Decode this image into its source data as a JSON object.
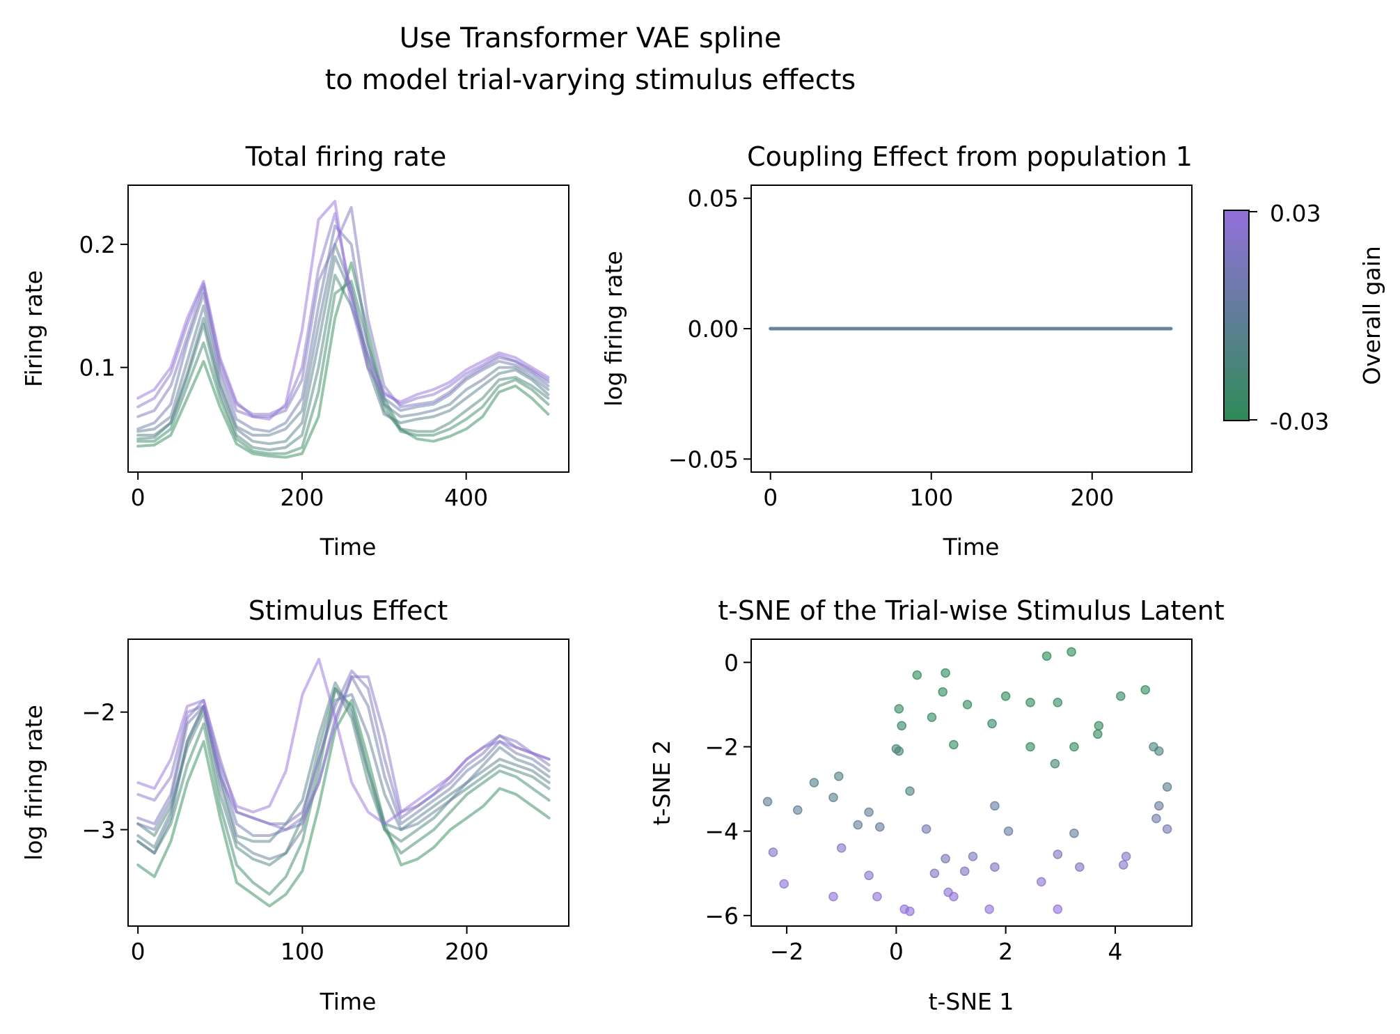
{
  "suptitle": [
    "Use Transformer VAE spline",
    "to model trial-varying stimulus effects"
  ],
  "colormap": {
    "low_color": "#2e8b57",
    "high_color": "#9370db",
    "label": "Overall gain",
    "ticks": [
      "0.03",
      "-0.03"
    ],
    "range": [
      -0.03,
      0.03
    ]
  },
  "chart_data": [
    {
      "type": "line",
      "title": "Total firing rate",
      "xlabel": "Time",
      "ylabel": "Firing rate",
      "xlim": [
        -12,
        525
      ],
      "ylim": [
        0.015,
        0.248
      ],
      "xticks": [
        0,
        200,
        400
      ],
      "yticks": [
        0.1,
        0.2
      ],
      "ytick_labels": [
        "0.1",
        "0.2"
      ],
      "x": [
        0,
        20,
        40,
        60,
        80,
        100,
        120,
        140,
        160,
        180,
        200,
        220,
        240,
        260,
        280,
        300,
        320,
        340,
        360,
        380,
        400,
        420,
        440,
        460,
        480,
        500
      ],
      "series": [
        {
          "gain": -0.03,
          "values": [
            0.036,
            0.037,
            0.045,
            0.075,
            0.105,
            0.068,
            0.038,
            0.03,
            0.028,
            0.027,
            0.03,
            0.06,
            0.14,
            0.185,
            0.13,
            0.075,
            0.05,
            0.042,
            0.04,
            0.044,
            0.05,
            0.06,
            0.08,
            0.085,
            0.075,
            0.062
          ]
        },
        {
          "gain": -0.022,
          "values": [
            0.04,
            0.04,
            0.05,
            0.085,
            0.12,
            0.075,
            0.042,
            0.032,
            0.03,
            0.03,
            0.035,
            0.08,
            0.16,
            0.17,
            0.12,
            0.07,
            0.048,
            0.045,
            0.045,
            0.05,
            0.058,
            0.068,
            0.085,
            0.09,
            0.082,
            0.07
          ]
        },
        {
          "gain": -0.014,
          "values": [
            0.042,
            0.043,
            0.055,
            0.092,
            0.135,
            0.08,
            0.045,
            0.035,
            0.033,
            0.035,
            0.045,
            0.1,
            0.175,
            0.15,
            0.11,
            0.065,
            0.05,
            0.048,
            0.048,
            0.055,
            0.065,
            0.075,
            0.09,
            0.092,
            0.085,
            0.075
          ]
        },
        {
          "gain": -0.006,
          "values": [
            0.045,
            0.045,
            0.055,
            0.095,
            0.14,
            0.085,
            0.05,
            0.04,
            0.038,
            0.04,
            0.055,
            0.12,
            0.19,
            0.16,
            0.1,
            0.062,
            0.055,
            0.058,
            0.06,
            0.065,
            0.075,
            0.085,
            0.095,
            0.098,
            0.09,
            0.078
          ]
        },
        {
          "gain": 0.0,
          "values": [
            0.048,
            0.05,
            0.06,
            0.105,
            0.15,
            0.088,
            0.052,
            0.045,
            0.045,
            0.05,
            0.065,
            0.135,
            0.2,
            0.165,
            0.105,
            0.07,
            0.06,
            0.062,
            0.065,
            0.07,
            0.082,
            0.09,
            0.1,
            0.1,
            0.092,
            0.082
          ]
        },
        {
          "gain": 0.008,
          "values": [
            0.05,
            0.055,
            0.07,
            0.12,
            0.16,
            0.095,
            0.058,
            0.05,
            0.048,
            0.055,
            0.075,
            0.15,
            0.215,
            0.2,
            0.12,
            0.075,
            0.065,
            0.068,
            0.07,
            0.078,
            0.09,
            0.098,
            0.105,
            0.102,
            0.095,
            0.085
          ]
        },
        {
          "gain": 0.016,
          "values": [
            0.06,
            0.065,
            0.085,
            0.125,
            0.165,
            0.1,
            0.065,
            0.06,
            0.06,
            0.065,
            0.09,
            0.17,
            0.2,
            0.23,
            0.14,
            0.085,
            0.068,
            0.07,
            0.072,
            0.08,
            0.092,
            0.1,
            0.108,
            0.105,
            0.097,
            0.088
          ]
        },
        {
          "gain": 0.023,
          "values": [
            0.068,
            0.075,
            0.095,
            0.135,
            0.168,
            0.105,
            0.07,
            0.062,
            0.062,
            0.068,
            0.1,
            0.18,
            0.225,
            0.16,
            0.11,
            0.08,
            0.07,
            0.075,
            0.078,
            0.085,
            0.095,
            0.102,
            0.11,
            0.105,
            0.098,
            0.09
          ]
        },
        {
          "gain": 0.03,
          "values": [
            0.075,
            0.082,
            0.1,
            0.14,
            0.17,
            0.108,
            0.072,
            0.06,
            0.058,
            0.07,
            0.13,
            0.22,
            0.235,
            0.15,
            0.1,
            0.078,
            0.072,
            0.078,
            0.082,
            0.088,
            0.098,
            0.105,
            0.112,
            0.108,
            0.1,
            0.092
          ]
        }
      ]
    },
    {
      "type": "line",
      "title": "Coupling Effect from population 1",
      "xlabel": "Time",
      "ylabel": "log firing rate",
      "xlim": [
        -12,
        262
      ],
      "ylim": [
        -0.055,
        0.055
      ],
      "xticks": [
        0,
        100,
        200
      ],
      "yticks": [
        -0.05,
        0.0,
        0.05
      ],
      "ytick_labels": [
        "−0.05",
        "0.00",
        "0.05"
      ],
      "x": [
        0,
        249
      ],
      "series": [
        {
          "gain": 0.0,
          "values": [
            0.0,
            0.0
          ]
        }
      ]
    },
    {
      "type": "line",
      "title": "Stimulus Effect",
      "xlabel": "Time",
      "ylabel": "log firing rate",
      "xlim": [
        -6,
        262
      ],
      "ylim": [
        -3.82,
        -1.38
      ],
      "xticks": [
        0,
        100,
        200
      ],
      "yticks": [
        -3,
        -2
      ],
      "ytick_labels": [
        "−3",
        "−2"
      ],
      "x": [
        0,
        10,
        20,
        30,
        40,
        50,
        60,
        70,
        80,
        90,
        100,
        110,
        120,
        130,
        140,
        150,
        160,
        170,
        180,
        190,
        200,
        210,
        220,
        230,
        240,
        250
      ],
      "series": [
        {
          "gain": -0.03,
          "values": [
            -3.3,
            -3.4,
            -3.1,
            -2.6,
            -2.25,
            -2.9,
            -3.45,
            -3.55,
            -3.65,
            -3.55,
            -3.35,
            -2.8,
            -2.15,
            -1.9,
            -2.4,
            -2.95,
            -3.3,
            -3.25,
            -3.15,
            -3.0,
            -2.9,
            -2.8,
            -2.65,
            -2.7,
            -2.8,
            -2.9
          ]
        },
        {
          "gain": -0.022,
          "values": [
            -3.1,
            -3.2,
            -2.95,
            -2.45,
            -2.1,
            -2.8,
            -3.3,
            -3.45,
            -3.55,
            -3.4,
            -3.1,
            -2.5,
            -1.8,
            -1.95,
            -2.5,
            -3.0,
            -3.2,
            -3.1,
            -3.0,
            -2.85,
            -2.7,
            -2.6,
            -2.5,
            -2.55,
            -2.65,
            -2.75
          ]
        },
        {
          "gain": -0.014,
          "values": [
            -2.95,
            -3.05,
            -2.8,
            -2.3,
            -2.0,
            -2.7,
            -3.15,
            -3.25,
            -3.3,
            -3.2,
            -2.9,
            -2.3,
            -1.8,
            -2.05,
            -2.6,
            -3.0,
            -3.1,
            -3.0,
            -2.9,
            -2.75,
            -2.65,
            -2.55,
            -2.45,
            -2.5,
            -2.55,
            -2.65
          ]
        },
        {
          "gain": -0.006,
          "values": [
            -3.05,
            -3.15,
            -2.85,
            -2.25,
            -1.95,
            -2.55,
            -3.05,
            -3.1,
            -3.1,
            -2.95,
            -2.75,
            -2.2,
            -1.75,
            -2.0,
            -2.5,
            -2.95,
            -3.0,
            -2.9,
            -2.8,
            -2.7,
            -2.6,
            -2.5,
            -2.4,
            -2.45,
            -2.5,
            -2.6
          ]
        },
        {
          "gain": 0.0,
          "values": [
            -3.1,
            -3.2,
            -2.9,
            -2.25,
            -1.95,
            -2.6,
            -3.1,
            -3.2,
            -3.25,
            -3.2,
            -3.0,
            -2.4,
            -1.9,
            -1.85,
            -2.2,
            -2.7,
            -3.0,
            -2.95,
            -2.85,
            -2.75,
            -2.6,
            -2.45,
            -2.3,
            -2.4,
            -2.45,
            -2.55
          ]
        },
        {
          "gain": 0.008,
          "values": [
            -2.95,
            -3.0,
            -2.75,
            -2.1,
            -1.95,
            -2.5,
            -2.95,
            -3.05,
            -3.05,
            -3.0,
            -2.95,
            -2.6,
            -2.05,
            -1.7,
            -1.95,
            -2.55,
            -2.95,
            -2.85,
            -2.75,
            -2.65,
            -2.5,
            -2.4,
            -2.25,
            -2.35,
            -2.4,
            -2.5
          ]
        },
        {
          "gain": 0.016,
          "values": [
            -2.9,
            -2.95,
            -2.7,
            -2.05,
            -1.9,
            -2.4,
            -2.85,
            -2.9,
            -2.95,
            -2.95,
            -2.85,
            -2.4,
            -1.95,
            -1.65,
            -1.8,
            -2.4,
            -2.9,
            -2.8,
            -2.7,
            -2.6,
            -2.45,
            -2.35,
            -2.2,
            -2.3,
            -2.35,
            -2.45
          ]
        },
        {
          "gain": 0.023,
          "values": [
            -2.7,
            -2.75,
            -2.55,
            -2.0,
            -1.95,
            -2.55,
            -2.85,
            -2.9,
            -2.95,
            -3.0,
            -2.9,
            -2.6,
            -2.1,
            -1.7,
            -1.7,
            -2.2,
            -2.85,
            -2.8,
            -2.7,
            -2.55,
            -2.4,
            -2.3,
            -2.2,
            -2.25,
            -2.35,
            -2.4
          ]
        },
        {
          "gain": 0.03,
          "values": [
            -2.6,
            -2.65,
            -2.4,
            -1.95,
            -1.9,
            -2.45,
            -2.8,
            -2.85,
            -2.8,
            -2.5,
            -1.85,
            -1.55,
            -2.05,
            -2.6,
            -2.85,
            -2.95,
            -2.85,
            -2.75,
            -2.65,
            -2.55,
            -2.4,
            -2.3,
            -2.25,
            -2.3,
            -2.35,
            -2.4
          ]
        }
      ]
    },
    {
      "type": "scatter",
      "title": "t-SNE of the Trial-wise Stimulus Latent",
      "xlabel": "t-SNE 1",
      "ylabel": "t-SNE 2",
      "xlim": [
        -2.65,
        5.4
      ],
      "ylim": [
        -6.25,
        0.55
      ],
      "xticks": [
        -2,
        0,
        2,
        4
      ],
      "xtick_labels": [
        "−2",
        "0",
        "2",
        "4"
      ],
      "yticks": [
        -6,
        -4,
        -2,
        0
      ],
      "ytick_labels": [
        "−6",
        "−4",
        "−2",
        "0"
      ],
      "points": [
        {
          "x": 0.38,
          "y": -0.3,
          "gain": -0.03
        },
        {
          "x": 0.9,
          "y": -0.25,
          "gain": -0.03
        },
        {
          "x": 0.85,
          "y": -0.7,
          "gain": -0.028
        },
        {
          "x": 2.75,
          "y": 0.15,
          "gain": -0.03
        },
        {
          "x": 3.2,
          "y": 0.25,
          "gain": -0.03
        },
        {
          "x": 4.55,
          "y": -0.65,
          "gain": -0.028
        },
        {
          "x": 4.1,
          "y": -0.8,
          "gain": -0.026
        },
        {
          "x": 2.0,
          "y": -0.8,
          "gain": -0.028
        },
        {
          "x": 2.45,
          "y": -0.95,
          "gain": -0.028
        },
        {
          "x": 2.95,
          "y": -0.95,
          "gain": -0.027
        },
        {
          "x": 1.3,
          "y": -1.0,
          "gain": -0.027
        },
        {
          "x": 0.05,
          "y": -1.1,
          "gain": -0.025
        },
        {
          "x": 0.65,
          "y": -1.3,
          "gain": -0.026
        },
        {
          "x": 0.1,
          "y": -1.5,
          "gain": -0.025
        },
        {
          "x": 1.75,
          "y": -1.45,
          "gain": -0.026
        },
        {
          "x": 3.7,
          "y": -1.5,
          "gain": -0.026
        },
        {
          "x": 3.68,
          "y": -1.7,
          "gain": -0.025
        },
        {
          "x": 1.05,
          "y": -1.95,
          "gain": -0.027
        },
        {
          "x": 2.45,
          "y": -2.0,
          "gain": -0.027
        },
        {
          "x": 3.25,
          "y": -2.0,
          "gain": -0.027
        },
        {
          "x": 0.0,
          "y": -2.05,
          "gain": -0.016
        },
        {
          "x": 0.05,
          "y": -2.1,
          "gain": -0.014
        },
        {
          "x": 2.9,
          "y": -2.4,
          "gain": -0.018
        },
        {
          "x": 4.7,
          "y": -2.0,
          "gain": -0.012
        },
        {
          "x": 4.8,
          "y": -2.1,
          "gain": -0.01
        },
        {
          "x": 4.95,
          "y": -2.95,
          "gain": -0.005
        },
        {
          "x": 4.8,
          "y": -3.4,
          "gain": 0.003
        },
        {
          "x": 4.75,
          "y": -3.7,
          "gain": 0.008
        },
        {
          "x": 4.95,
          "y": -3.95,
          "gain": 0.012
        },
        {
          "x": 0.25,
          "y": -3.05,
          "gain": -0.012
        },
        {
          "x": -1.5,
          "y": -2.85,
          "gain": -0.008
        },
        {
          "x": -1.05,
          "y": -2.7,
          "gain": -0.01
        },
        {
          "x": -1.15,
          "y": -3.2,
          "gain": -0.006
        },
        {
          "x": -1.8,
          "y": -3.5,
          "gain": -0.002
        },
        {
          "x": -2.35,
          "y": -3.3,
          "gain": -0.004
        },
        {
          "x": -0.5,
          "y": -3.55,
          "gain": 0.0
        },
        {
          "x": -0.7,
          "y": -3.85,
          "gain": 0.002
        },
        {
          "x": -0.3,
          "y": -3.9,
          "gain": 0.001
        },
        {
          "x": 0.55,
          "y": -3.95,
          "gain": 0.01
        },
        {
          "x": 1.8,
          "y": -3.4,
          "gain": 0.002
        },
        {
          "x": 2.05,
          "y": -4.0,
          "gain": 0.004
        },
        {
          "x": 3.25,
          "y": -4.05,
          "gain": 0.002
        },
        {
          "x": -2.25,
          "y": -4.5,
          "gain": 0.018
        },
        {
          "x": -1.0,
          "y": -4.4,
          "gain": 0.02
        },
        {
          "x": 0.9,
          "y": -4.65,
          "gain": 0.012
        },
        {
          "x": 1.4,
          "y": -4.6,
          "gain": 0.014
        },
        {
          "x": 0.7,
          "y": -5.0,
          "gain": 0.017
        },
        {
          "x": 1.25,
          "y": -4.95,
          "gain": 0.018
        },
        {
          "x": 1.8,
          "y": -4.85,
          "gain": 0.016
        },
        {
          "x": 2.95,
          "y": -4.55,
          "gain": 0.016
        },
        {
          "x": 3.35,
          "y": -4.85,
          "gain": 0.018
        },
        {
          "x": 4.2,
          "y": -4.6,
          "gain": 0.02
        },
        {
          "x": 4.15,
          "y": -4.8,
          "gain": 0.02
        },
        {
          "x": -0.5,
          "y": -5.05,
          "gain": 0.024
        },
        {
          "x": 2.65,
          "y": -5.2,
          "gain": 0.024
        },
        {
          "x": -2.05,
          "y": -5.25,
          "gain": 0.028
        },
        {
          "x": -1.15,
          "y": -5.55,
          "gain": 0.028
        },
        {
          "x": -0.35,
          "y": -5.55,
          "gain": 0.027
        },
        {
          "x": 0.95,
          "y": -5.45,
          "gain": 0.027
        },
        {
          "x": 1.05,
          "y": -5.55,
          "gain": 0.028
        },
        {
          "x": 0.15,
          "y": -5.85,
          "gain": 0.03
        },
        {
          "x": 0.25,
          "y": -5.9,
          "gain": 0.03
        },
        {
          "x": 1.7,
          "y": -5.85,
          "gain": 0.03
        },
        {
          "x": 2.95,
          "y": -5.85,
          "gain": 0.03
        }
      ]
    }
  ]
}
